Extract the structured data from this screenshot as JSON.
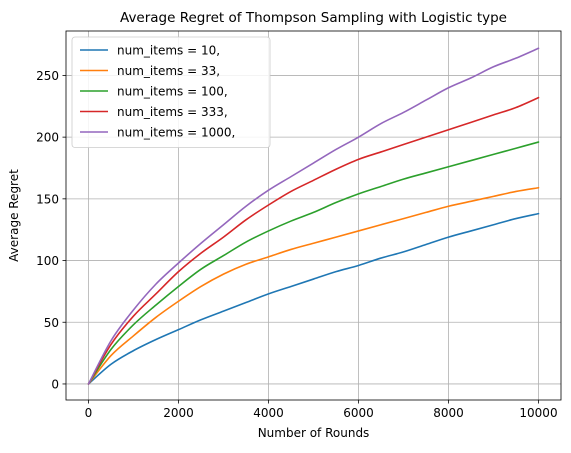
{
  "chart_data": {
    "type": "line",
    "title": "Average Regret of Thompson Sampling with Logistic type",
    "xlabel": "Number of Rounds",
    "ylabel": "Average Regret",
    "xlim": [
      -500,
      10500
    ],
    "ylim": [
      -13,
      286
    ],
    "xticks": [
      0,
      2000,
      4000,
      6000,
      8000,
      10000
    ],
    "yticks": [
      0,
      50,
      100,
      150,
      200,
      250
    ],
    "grid": true,
    "legend_position": "top-left",
    "x": [
      0,
      500,
      1000,
      1500,
      2000,
      2500,
      3000,
      3500,
      4000,
      4500,
      5000,
      5500,
      6000,
      6500,
      7000,
      7500,
      8000,
      8500,
      9000,
      9500,
      10000
    ],
    "series": [
      {
        "name": "num_items = 10,",
        "color": "#1f77b4",
        "values": [
          0,
          16,
          27,
          36,
          44,
          52,
          59,
          66,
          73,
          79,
          85,
          91,
          96,
          102,
          107,
          113,
          119,
          124,
          129,
          134,
          138
        ]
      },
      {
        "name": "num_items = 33,",
        "color": "#ff7f0e",
        "values": [
          0,
          23,
          39,
          54,
          67,
          79,
          89,
          97,
          103,
          109,
          114,
          119,
          124,
          129,
          134,
          139,
          144,
          148,
          152,
          156,
          159
        ]
      },
      {
        "name": "num_items = 100,",
        "color": "#2ca02c",
        "values": [
          0,
          28,
          48,
          64,
          79,
          93,
          104,
          115,
          124,
          132,
          139,
          147,
          154,
          160,
          166,
          171,
          176,
          181,
          186,
          191,
          196
        ]
      },
      {
        "name": "num_items = 333,",
        "color": "#d62728",
        "values": [
          0,
          32,
          55,
          73,
          91,
          106,
          119,
          133,
          145,
          156,
          165,
          174,
          182,
          188,
          194,
          200,
          206,
          212,
          218,
          224,
          232
        ]
      },
      {
        "name": "num_items = 1000,",
        "color": "#9467bd",
        "values": [
          0,
          35,
          60,
          81,
          98,
          114,
          129,
          144,
          157,
          168,
          179,
          190,
          200,
          211,
          220,
          230,
          240,
          248,
          257,
          264,
          272
        ]
      }
    ]
  }
}
